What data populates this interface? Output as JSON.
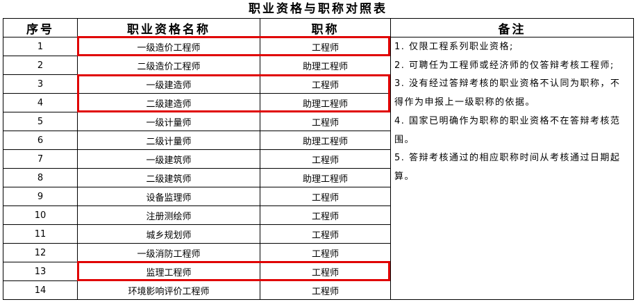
{
  "title": "职业资格与职称对照表",
  "headers": [
    "序号",
    "职业资格名称",
    "职称",
    "备注"
  ],
  "rows": [
    {
      "no": "1",
      "qual": "一级造价工程师",
      "title": "工程师"
    },
    {
      "no": "2",
      "qual": "二级造价工程师",
      "title": "助理工程师"
    },
    {
      "no": "3",
      "qual": "一级建造师",
      "title": "工程师"
    },
    {
      "no": "4",
      "qual": "二级建造师",
      "title": "助理工程师"
    },
    {
      "no": "5",
      "qual": "一级计量师",
      "title": "工程师"
    },
    {
      "no": "6",
      "qual": "二级计量师",
      "title": "助理工程师"
    },
    {
      "no": "7",
      "qual": "一级建筑师",
      "title": "工程师"
    },
    {
      "no": "8",
      "qual": "二级建筑师",
      "title": "助理工程师"
    },
    {
      "no": "9",
      "qual": "设备监理师",
      "title": "工程师"
    },
    {
      "no": "10",
      "qual": "注册测绘师",
      "title": "工程师"
    },
    {
      "no": "11",
      "qual": "城乡规划师",
      "title": "工程师"
    },
    {
      "no": "12",
      "qual": "一级消防工程师",
      "title": "工程师"
    },
    {
      "no": "13",
      "qual": "监理工程师",
      "title": "工程师"
    },
    {
      "no": "14",
      "qual": "环境影响评价工程师",
      "title": "工程师"
    }
  ],
  "remarks": [
    "1. 仅限工程系列职业资格;",
    "2. 可聘任为工程师或经济师的仅答辩考核工程师;",
    "3. 没有经过答辩考核的职业资格不认同为职称，不得作为申报上一级职称的依据。",
    "4. 国家已明确作为职称的职业资格不在答辩考核范围。",
    "5. 答辩考核通过的相应职称时间从考核通过日期起算。"
  ],
  "highlight_color": "#e00000"
}
